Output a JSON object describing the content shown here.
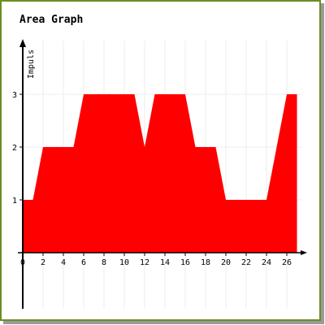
{
  "chart_data": {
    "type": "area",
    "title": "Area Graph",
    "xlabel": "",
    "ylabel": "Impuls",
    "xlim": [
      0,
      28
    ],
    "ylim": [
      -2,
      4
    ],
    "grid": true,
    "x_tick_labels": [
      "0",
      "2",
      "4",
      "6",
      "8",
      "10",
      "12",
      "14",
      "16",
      "18",
      "20",
      "22",
      "24",
      "26"
    ],
    "y_tick_labels": [
      "1",
      "2",
      "3"
    ],
    "series": [
      {
        "x": [
          0,
          1,
          2,
          3,
          4,
          5,
          6,
          7,
          8,
          9,
          10,
          11,
          12,
          13,
          14,
          15,
          16,
          17,
          18,
          19,
          20,
          21,
          22,
          23,
          24,
          25,
          26,
          27
        ],
        "y": [
          1,
          1,
          2,
          2,
          2,
          2,
          3,
          3,
          3,
          3,
          3,
          3,
          2,
          3,
          3,
          3,
          3,
          2,
          2,
          2,
          1,
          1,
          1,
          1,
          1,
          2,
          3,
          3
        ]
      }
    ],
    "colors": {
      "area": "#ff0000",
      "frame": "#6b8e23",
      "shadow": "#9a9a9a",
      "grid": "#eeeeee",
      "axis": "#000000"
    }
  }
}
